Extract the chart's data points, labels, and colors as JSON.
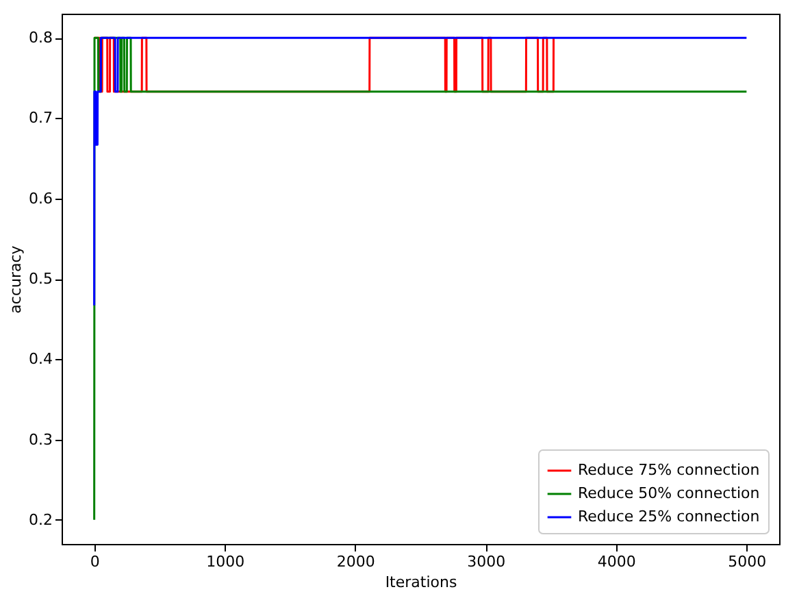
{
  "chart_data": {
    "type": "line",
    "xlabel": "Iterations",
    "ylabel": "accuracy",
    "xlim": [
      -250,
      5250
    ],
    "ylim": [
      0.17,
      0.83
    ],
    "xticks": [
      0,
      1000,
      2000,
      3000,
      4000,
      5000
    ],
    "yticks": [
      0.2,
      0.3,
      0.4,
      0.5,
      0.6,
      0.7,
      0.8
    ],
    "grid": false,
    "legend": "bottom right",
    "marker": "none",
    "line_style": "solid",
    "series": [
      {
        "name": "Reduce 75% connection",
        "color": "#ff0000",
        "x": [
          1,
          40,
          41,
          60,
          61,
          100,
          101,
          120,
          121,
          150,
          151,
          365,
          366,
          400,
          401,
          2110,
          2111,
          2690,
          2691,
          2700,
          2701,
          2760,
          2761,
          2775,
          2776,
          2975,
          2976,
          3020,
          3021,
          3040,
          3041,
          3310,
          3311,
          3400,
          3401,
          3440,
          3441,
          3470,
          3471,
          3520,
          3521
        ],
        "values": [
          0.8,
          0.8,
          0.733,
          0.733,
          0.8,
          0.8,
          0.733,
          0.733,
          0.8,
          0.8,
          0.733,
          0.733,
          0.8,
          0.8,
          0.733,
          0.733,
          0.8,
          0.8,
          0.733,
          0.733,
          0.8,
          0.8,
          0.733,
          0.733,
          0.8,
          0.8,
          0.733,
          0.733,
          0.8,
          0.8,
          0.733,
          0.733,
          0.8,
          0.8,
          0.733,
          0.733,
          0.8,
          0.8,
          0.733,
          0.733,
          0.8
        ]
      },
      {
        "name": "Reduce 50% connection",
        "color": "#008000",
        "x": [
          0,
          1,
          2,
          30,
          31,
          50,
          51,
          200,
          201,
          210,
          211,
          230,
          231,
          250,
          251,
          280,
          281,
          5000
        ],
        "values": [
          0.2,
          0.467,
          0.8,
          0.8,
          0.733,
          0.733,
          0.8,
          0.8,
          0.733,
          0.733,
          0.8,
          0.8,
          0.733,
          0.733,
          0.8,
          0.8,
          0.733,
          0.733
        ]
      },
      {
        "name": "Reduce 25% connection",
        "color": "#0000ff",
        "x": [
          0,
          1,
          10,
          11,
          25,
          26,
          50,
          51,
          160,
          161,
          180,
          181,
          5000
        ],
        "values": [
          0.467,
          0.733,
          0.733,
          0.667,
          0.667,
          0.733,
          0.733,
          0.8,
          0.8,
          0.733,
          0.733,
          0.8,
          0.8
        ]
      }
    ]
  }
}
